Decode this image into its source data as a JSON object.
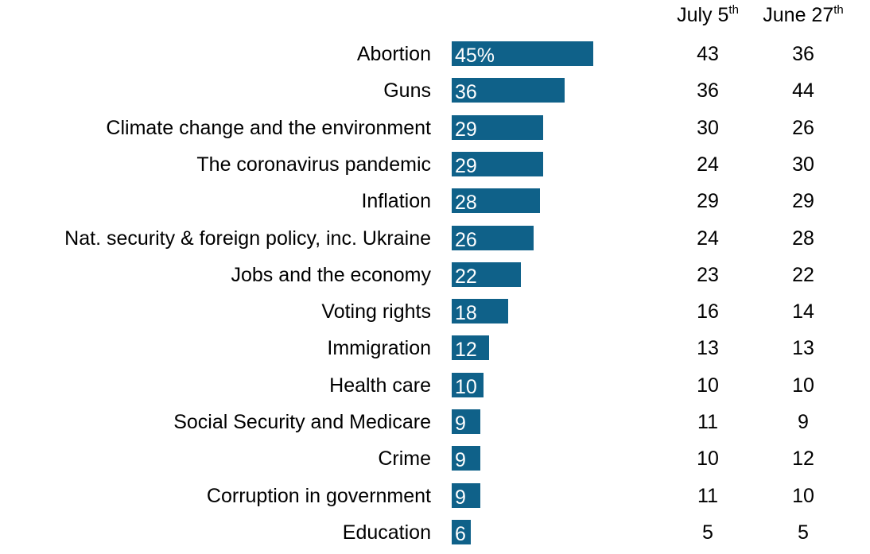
{
  "chart_data": {
    "type": "bar",
    "orientation": "horizontal",
    "title": "",
    "xlabel": "",
    "ylabel": "",
    "xlim": [
      0,
      45
    ],
    "grid": false,
    "legend": "none",
    "bar_color": "#0f6189",
    "bar_label_color": "#ffffff",
    "categories": [
      "Abortion",
      "Guns",
      "Climate change and the environment",
      "The coronavirus pandemic",
      "Inflation",
      "Nat. security & foreign policy, inc. Ukraine",
      "Jobs and the economy",
      "Voting rights",
      "Immigration",
      "Health care",
      "Social Security and Medicare",
      "Crime",
      "Corruption in government",
      "Education"
    ],
    "values": [
      45,
      36,
      29,
      29,
      28,
      26,
      22,
      18,
      12,
      10,
      9,
      9,
      9,
      6
    ],
    "value_labels": [
      "45%",
      "36",
      "29",
      "29",
      "28",
      "26",
      "22",
      "18",
      "12",
      "10",
      "9",
      "9",
      "9",
      "6"
    ],
    "comparison_columns": [
      {
        "header": "July 5",
        "header_suffix": "th",
        "values": [
          "43",
          "36",
          "30",
          "24",
          "29",
          "24",
          "23",
          "16",
          "13",
          "10",
          "11",
          "10",
          "11",
          "5"
        ]
      },
      {
        "header": "June 27",
        "header_suffix": "th",
        "values": [
          "36",
          "44",
          "26",
          "30",
          "29",
          "28",
          "22",
          "14",
          "13",
          "10",
          "9",
          "12",
          "10",
          "5"
        ]
      }
    ]
  }
}
